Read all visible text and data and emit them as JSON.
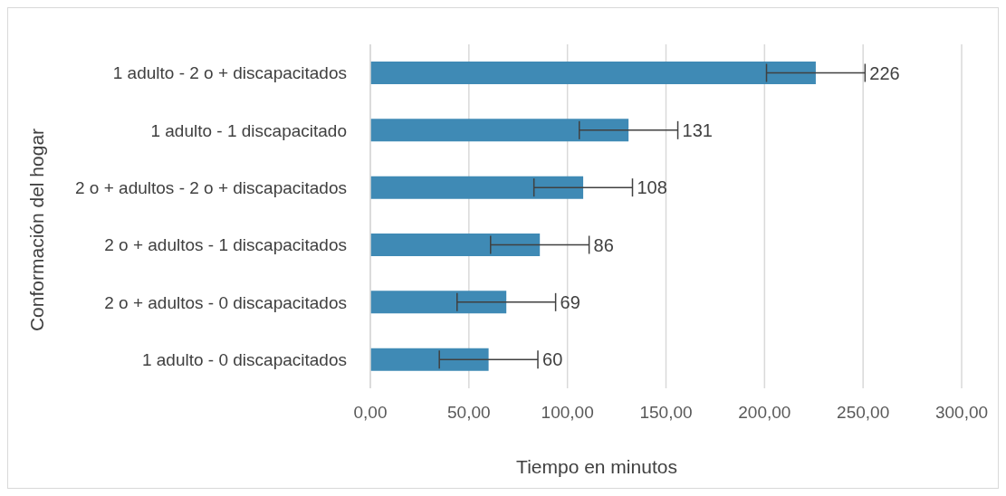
{
  "chart_data": {
    "type": "bar",
    "orientation": "horizontal",
    "xlabel": "Tiempo en minutos",
    "ylabel": "Conformación del hogar",
    "categories": [
      "1 adulto - 2 o + discapacitados",
      "1 adulto - 1 discapacitado",
      "2 o + adultos -  2 o + discapacitados",
      "2 o + adultos -  1 discapacitados",
      "2 o + adultos - 0 discapacitados",
      "1 adulto - 0 discapacitados"
    ],
    "values": [
      226,
      131,
      108,
      86,
      69,
      60
    ],
    "errors": [
      25,
      25,
      25,
      25,
      25,
      25
    ],
    "color": "#3f8ab5",
    "data_labels": true,
    "grid": "x",
    "xlim": [
      0,
      300
    ],
    "xticks": [
      {
        "value": 0,
        "label": "0,00"
      },
      {
        "value": 50,
        "label": "50,00"
      },
      {
        "value": 100,
        "label": "100,00"
      },
      {
        "value": 150,
        "label": "150,00"
      },
      {
        "value": 200,
        "label": "200,00"
      },
      {
        "value": 250,
        "label": "250,00"
      },
      {
        "value": 300,
        "label": "300,00"
      }
    ]
  }
}
